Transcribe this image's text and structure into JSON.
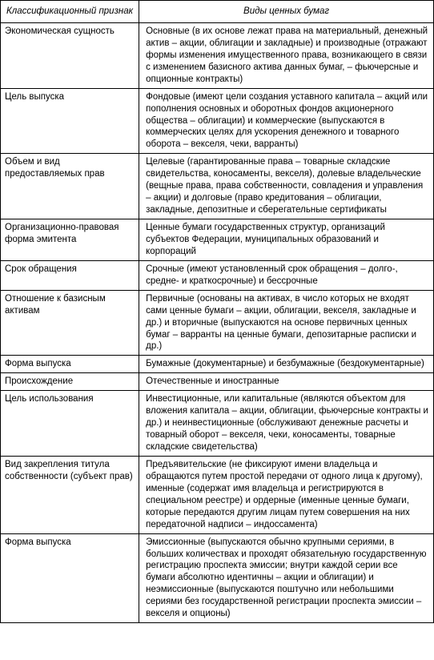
{
  "table": {
    "headers": [
      "Классификационный признак",
      "Виды ценных бумаг"
    ],
    "rows": [
      {
        "attribute": "Экономическая сущность",
        "types": "Основные (в их основе лежат права на материальный, денежный актив – акции, облигации и закладные) и производные (отражают формы изменения имущественного права, возникающего в связи с изменением базисного актива данных бумаг, – фьючерсные и опционные контракты)"
      },
      {
        "attribute": "Цель выпуска",
        "types": "Фондовые (имеют цели создания уставного капитала – акций или пополнения основных и оборотных фондов акционерного общества – облигации) и коммерческие (выпускаются в коммерческих целях для ускорения денежного и товарного оборота – векселя, чеки, варранты)"
      },
      {
        "attribute": "Объем и вид предоставляемых прав",
        "types": "Целевые (гарантированные права – товарные складские свидетельства, коносаменты, векселя), долевые владельческие (вещные права, права собственности, совладения и управления – акции) и долговые (право кредитования – облигации, закладные, депозитные и сберегательные сертификаты"
      },
      {
        "attribute": "Организационно-правовая форма эмитента",
        "types": "Ценные бумаги государственных структур, организаций субъектов Федерации, муниципальных образований и корпораций"
      },
      {
        "attribute": "Срок обращения",
        "types": "Срочные (имеют установленный срок обращения – долго-, средне- и краткосрочные) и бессрочные"
      },
      {
        "attribute": "Отношение к базисным активам",
        "types": "Первичные (основаны на активах, в число которых не входят сами ценные бумаги – акции, облигации, векселя, закладные и др.) и вторичные (выпускаются на основе первичных ценных бумаг – варранты на ценные бумаги, депозитарные расписки и др.)"
      },
      {
        "attribute": "Форма выпуска",
        "types": "Бумажные (документарные) и безбумажные (бездокументарные)"
      },
      {
        "attribute": "Происхождение",
        "types": "Отечественные и иностранные"
      },
      {
        "attribute": "Цель использования",
        "types": "Инвестиционные, или капитальные (являются объектом для вложения капитала – акции, облигации, фьючерсные контракты и др.) и неинвестиционные (обслуживают денежные расчеты и товарный оборот – векселя, чеки, коносаменты, товарные складские свидетельства)"
      },
      {
        "attribute": "Вид закрепления титула собственности (субъект прав)",
        "types": "Предъявительские (не фиксируют имени владельца и обращаются путем простой передачи от одного лица к другому), именные (содержат имя владельца и регистрируются в специальном реестре) и ордерные (именные ценные бумаги, которые передаются другим лицам путем совершения на них передаточной надписи – индоссамента)"
      },
      {
        "attribute": "Форма выпуска",
        "types": "Эмиссионные (выпускаются обычно крупными сериями, в больших количествах и проходят обязательную государственную регистрацию проспекта эмиссии; внутри каждой серии все бумаги абсолютно идентичны – акции и облигации) и неэмиссионные (выпускаются поштучно или небольшими сериями без государственной регистрации проспекта эмиссии – векселя и опционы)"
      }
    ]
  }
}
